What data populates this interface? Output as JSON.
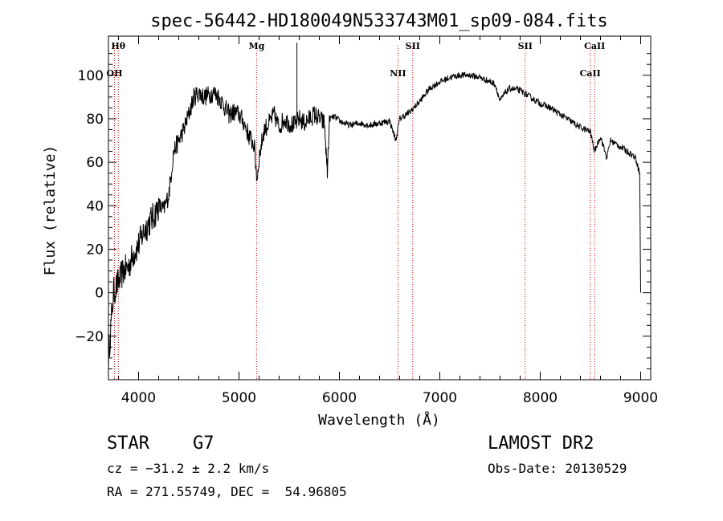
{
  "chart_data": {
    "type": "line",
    "title": "spec-56442-HD180049N533743M01_sp09-084.fits",
    "xlabel": "Wavelength (Å)",
    "ylabel": "Flux (relative)",
    "xlim": [
      3700,
      9100
    ],
    "ylim": [
      -40,
      118
    ],
    "x_ticks": [
      4000,
      5000,
      6000,
      7000,
      8000,
      9000
    ],
    "x_tick_labels": [
      "4000",
      "5000",
      "6000",
      "7000",
      "8000",
      "9000"
    ],
    "y_ticks": [
      -20,
      0,
      20,
      40,
      60,
      80,
      100
    ],
    "y_tick_labels": [
      "−20",
      "0",
      "20",
      "40",
      "60",
      "80",
      "100"
    ],
    "series": [
      {
        "color": "#000000",
        "x": [
          3700,
          3750,
          3800,
          3850,
          3900,
          3950,
          4000,
          4050,
          4100,
          4150,
          4200,
          4250,
          4300,
          4350,
          4400,
          4450,
          4500,
          4550,
          4600,
          4650,
          4700,
          4750,
          4800,
          4850,
          4900,
          4950,
          5000,
          5050,
          5100,
          5150,
          5180,
          5200,
          5250,
          5300,
          5350,
          5400,
          5450,
          5500,
          5550,
          5600,
          5650,
          5700,
          5750,
          5800,
          5850,
          5880,
          5900,
          5950,
          6000,
          6100,
          6200,
          6300,
          6400,
          6500,
          6563,
          6600,
          6700,
          6800,
          6900,
          7000,
          7100,
          7200,
          7300,
          7400,
          7500,
          7550,
          7600,
          7650,
          7700,
          7800,
          7900,
          8000,
          8100,
          8200,
          8300,
          8400,
          8500,
          8540,
          8600,
          8662,
          8700,
          8800,
          8900,
          8950,
          8990,
          9000
        ],
        "y": [
          -30,
          0,
          5,
          10,
          12,
          18,
          22,
          28,
          32,
          35,
          40,
          38,
          45,
          65,
          70,
          75,
          82,
          90,
          92,
          90,
          91,
          92,
          90,
          86,
          82,
          83,
          82,
          78,
          72,
          68,
          52,
          62,
          75,
          78,
          82,
          76,
          80,
          78,
          77,
          80,
          78,
          80,
          82,
          80,
          78,
          55,
          80,
          81,
          79,
          77,
          78,
          77,
          78,
          79,
          70,
          80,
          83,
          88,
          94,
          97,
          99,
          100,
          100,
          99,
          97,
          96,
          88,
          92,
          94,
          93,
          90,
          87,
          85,
          82,
          79,
          76,
          74,
          65,
          72,
          62,
          70,
          67,
          64,
          62,
          55,
          0
        ]
      }
    ],
    "spectral_lines": [
      {
        "label": "Hθ",
        "wavelength": 3798,
        "row": "top"
      },
      {
        "label": "OH",
        "wavelength": 3760,
        "row": "bottom"
      },
      {
        "label": "Mg",
        "wavelength": 5175,
        "row": "top"
      },
      {
        "label": "NII",
        "wavelength": 6583,
        "row": "bottom"
      },
      {
        "label": "SII",
        "wavelength": 6730,
        "row": "top"
      },
      {
        "label": "SII",
        "wavelength": 7850,
        "row": "top"
      },
      {
        "label": "CaII",
        "wavelength": 8542,
        "row": "top"
      },
      {
        "label": "CaII",
        "wavelength": 8498,
        "row": "bottom"
      }
    ],
    "line_marker_color": "#cc0000",
    "sky_spike": {
      "x": 5577,
      "y": 115
    }
  },
  "info": {
    "object_class": "STAR",
    "subclass": "G7",
    "redshift": "cz = −31.2 ± 2.2 km/s",
    "coords": "RA = 271.55749, DEC =  54.96805",
    "survey": "LAMOST DR2",
    "obs_date": "Obs-Date: 20130529"
  }
}
